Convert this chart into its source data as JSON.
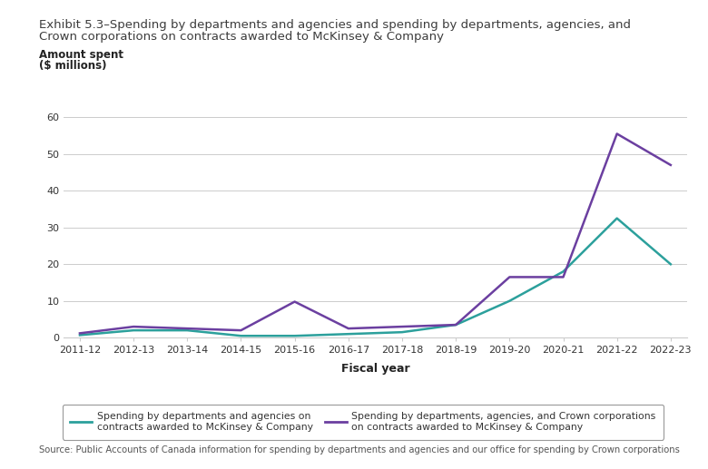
{
  "title_line1": "Exhibit 5.3–Spending by departments and agencies and spending by departments, agencies, and",
  "title_line2": "Crown corporations on contracts awarded to McKinsey & Company",
  "title_color": "#3c3c3c",
  "ylabel_line1": "Amount spent",
  "ylabel_line2": "($ millions)",
  "xlabel": "Fiscal year",
  "fiscal_years": [
    "2011-12",
    "2012-13",
    "2013-14",
    "2014-15",
    "2015-16",
    "2016-17",
    "2017-18",
    "2018-19",
    "2019-20",
    "2020-21",
    "2021-22",
    "2022-23"
  ],
  "dept_agencies": [
    0.7,
    2.0,
    2.0,
    0.5,
    0.5,
    1.0,
    1.5,
    3.5,
    10.0,
    18.0,
    32.5,
    20.0
  ],
  "dept_agencies_crown": [
    1.2,
    3.0,
    2.5,
    2.0,
    9.8,
    2.5,
    3.0,
    3.5,
    16.5,
    16.5,
    55.5,
    47.0
  ],
  "teal_color": "#2ca09c",
  "purple_color": "#6b3fa0",
  "ylim": [
    0,
    60
  ],
  "yticks": [
    0,
    10,
    20,
    30,
    40,
    50,
    60
  ],
  "background_color": "#ffffff",
  "grid_color": "#cccccc",
  "legend_label1": "Spending by departments and agencies on\ncontracts awarded to McKinsey & Company",
  "legend_label2": "Spending by departments, agencies, and Crown corporations\non contracts awarded to McKinsey & Company",
  "source_text": "Source: Public Accounts of Canada information for spending by departments and agencies and our office for spending by Crown corporations",
  "title_fontsize": 9.5,
  "ylabel_fontsize": 8.5,
  "axis_label_fontsize": 9,
  "tick_fontsize": 8,
  "legend_fontsize": 7.8,
  "source_fontsize": 7.2
}
